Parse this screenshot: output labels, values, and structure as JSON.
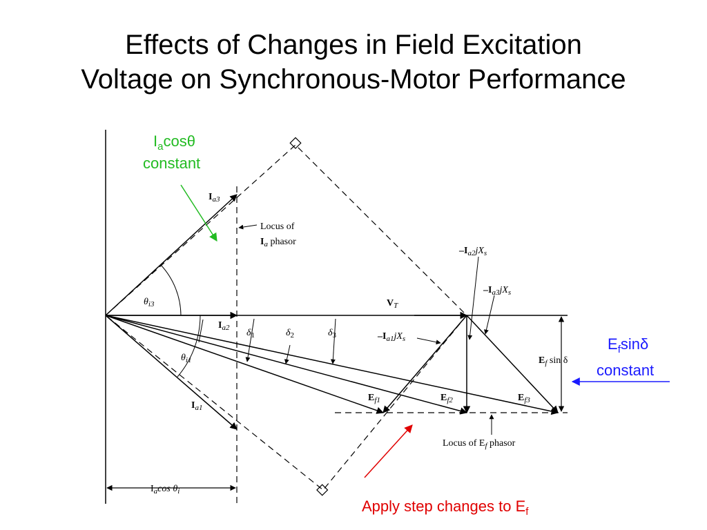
{
  "slide": {
    "title_line1": "Effects of Changes in Field Excitation",
    "title_line2": "Voltage on Synchronous-Motor Performance"
  },
  "annotations": {
    "ia_cos_main": "I",
    "ia_cos_sub": "a",
    "ia_cos_rest": "cosθ",
    "ia_constant": "constant",
    "ef_sin_main": "E",
    "ef_sin_sub": "f",
    "ef_sin_rest": "sinδ",
    "ef_constant": "constant",
    "apply_text": "Apply step changes to E",
    "apply_sub": "f",
    "ia_color": "#22bb22",
    "ef_color": "#1a1aff",
    "apply_color": "#e00000"
  },
  "figure": {
    "ia3": "I",
    "ia3_sub": "a3",
    "locus_ia_1": "Locus of",
    "locus_ia_2_main": "I",
    "locus_ia_2_sub": "a",
    "locus_ia_2_rest": " phasor",
    "theta_i3": "θ",
    "theta_i3_sub": "i3",
    "ia2": "I",
    "ia2_sub": "a2",
    "theta_i1": "θ",
    "theta_i1_sub": "i1",
    "ia1": "I",
    "ia1_sub": "a1",
    "delta1": "δ",
    "delta1_sub": "1",
    "delta2": "δ",
    "delta2_sub": "2",
    "delta3": "δ",
    "delta3_sub": "3",
    "vt": "V",
    "vt_sub": "T",
    "ia2jxs_pre": "–I",
    "ia2jxs_sub": "a2",
    "ia2jxs_rest": "jX",
    "ia2jxs_s": "s",
    "ia3jxs_pre": "–I",
    "ia3jxs_sub": "a3",
    "ia3jxs_rest": "jX",
    "ia3jxs_s": "s",
    "ia1jxs_pre": "–I",
    "ia1jxs_sub": "a1",
    "ia1jxs_rest": "jX",
    "ia1jxs_s": "s",
    "efsind_main": "E",
    "efsind_sub": "f",
    "efsind_rest": " sin δ",
    "ef1": "E",
    "ef1_sub": "f1",
    "ef2": "E",
    "ef2_sub": "f2",
    "ef3": "E",
    "ef3_sub": "f3",
    "locus_ef_main": "Locus of E",
    "locus_ef_sub": "f",
    "locus_ef_rest": " phasor",
    "iacos_main": "I",
    "iacos_sub": "a",
    "iacos_rest": "cos θ",
    "iacos_sub2": "i"
  }
}
